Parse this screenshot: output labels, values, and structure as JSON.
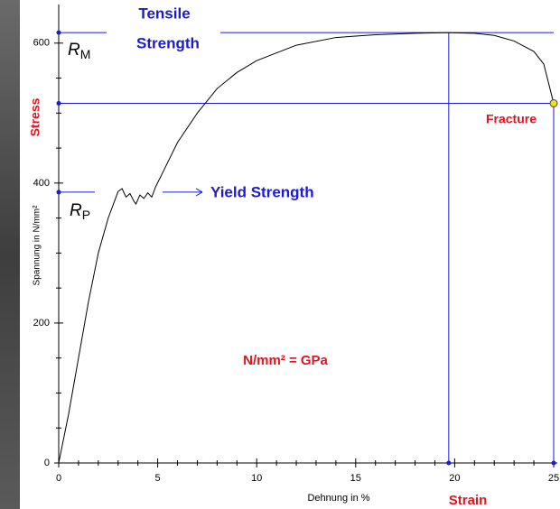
{
  "chart_data": {
    "type": "line",
    "x": [
      0,
      0.5,
      1,
      1.5,
      2,
      2.5,
      3,
      3.2,
      3.4,
      3.6,
      3.8,
      3.9,
      4.1,
      4.3,
      4.5,
      4.7,
      4.9,
      5.2,
      6,
      7,
      8,
      9,
      10,
      12,
      14,
      16,
      18,
      19.7,
      21,
      22,
      23,
      24,
      24.5,
      25
    ],
    "values": [
      0,
      70,
      150,
      230,
      300,
      350,
      388,
      392,
      380,
      385,
      374,
      370,
      383,
      378,
      386,
      380,
      395,
      412,
      458,
      500,
      535,
      558,
      575,
      597,
      608,
      612,
      614,
      615,
      614,
      611,
      603,
      588,
      570,
      514
    ],
    "color": "#000000",
    "xlim": [
      0,
      25
    ],
    "ylim": [
      0,
      650
    ],
    "xticks": [
      0,
      5,
      10,
      15,
      20,
      25
    ],
    "yticks": [
      0,
      200,
      400,
      600
    ],
    "xminorticks": [
      1,
      2,
      3,
      4,
      6,
      7,
      8,
      9,
      11,
      12,
      13,
      14,
      16,
      17,
      18,
      19,
      21,
      22,
      23,
      24
    ],
    "yminorticks": [
      50,
      100,
      150,
      250,
      300,
      350,
      450,
      500,
      550
    ],
    "xlabel": "Dehnung in %",
    "ylabel": "Spannung in N/mm²",
    "tensile_strength": {
      "x": 19.7,
      "y": 615,
      "label": [
        "Tensile",
        "Strength"
      ],
      "symbol": "R",
      "subscript": "M"
    },
    "yield_strength": {
      "y": 387,
      "label": "Yield Strength",
      "symbol": "R",
      "subscript": "P"
    },
    "fracture": {
      "x": 25,
      "y": 514,
      "label": "Fracture"
    },
    "stress_label": "Stress",
    "strain_label": "Strain",
    "unit_note": "N/mm² = GPa",
    "reference_color": "#1a1ad8"
  }
}
